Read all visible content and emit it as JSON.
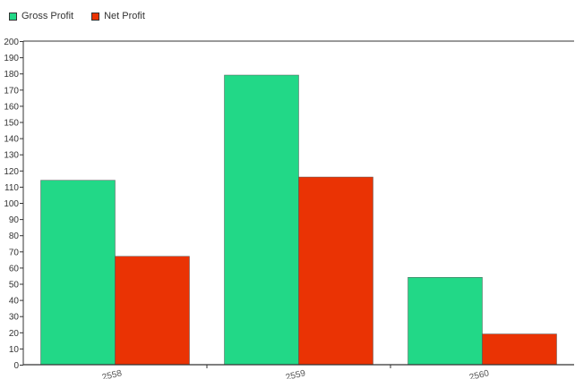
{
  "legend": {
    "items": [
      {
        "label": "Gross Profit",
        "color": "#22d887"
      },
      {
        "label": "Net Profit",
        "color": "#ea3304"
      }
    ]
  },
  "chart_data": {
    "type": "bar",
    "categories": [
      "2558",
      "2559",
      "2560"
    ],
    "series": [
      {
        "name": "Gross Profit",
        "color": "#22d887",
        "values": [
          114,
          179,
          54
        ]
      },
      {
        "name": "Net Profit",
        "color": "#ea3304",
        "values": [
          67,
          116,
          19
        ]
      }
    ],
    "title": "",
    "xlabel": "",
    "ylabel": "",
    "ylim": [
      0,
      200
    ],
    "yticks": [
      0,
      10,
      20,
      30,
      40,
      50,
      60,
      70,
      80,
      90,
      100,
      110,
      120,
      130,
      140,
      150,
      160,
      170,
      180,
      190,
      200
    ],
    "grid": false,
    "legend_position": "top-left"
  }
}
